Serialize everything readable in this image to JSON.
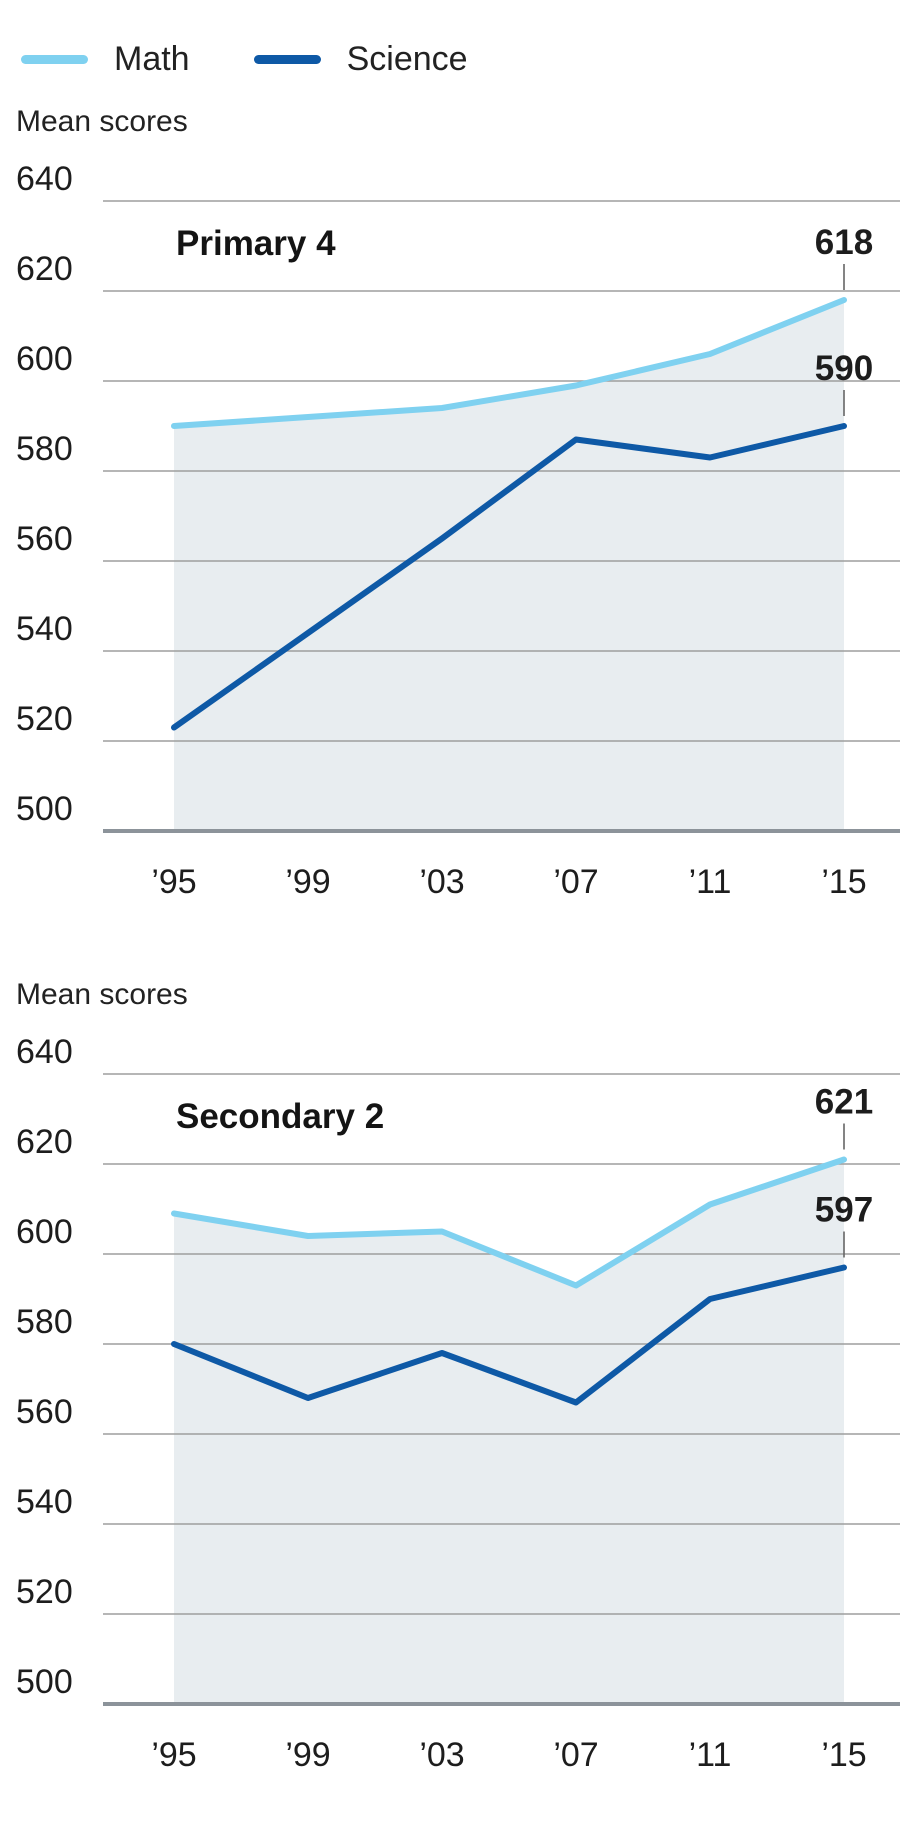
{
  "legend": {
    "items": [
      {
        "label": "Math",
        "color": "#7fd1f0"
      },
      {
        "label": "Science",
        "color": "#0e59a6"
      }
    ]
  },
  "chart_data": [
    {
      "type": "line",
      "title": "Primary 4",
      "ylabel": "Mean scores",
      "xlabel": "",
      "x": [
        "’95",
        "’99",
        "’03",
        "’07",
        "’11",
        "’15"
      ],
      "ylim": [
        500,
        640
      ],
      "y_ticks": [
        640,
        620,
        600,
        580,
        560,
        540,
        520,
        500
      ],
      "grid": true,
      "legend_position": "top",
      "area_fill": "#e8edf0",
      "series": [
        {
          "name": "Math",
          "color": "#7fd1f0",
          "values": [
            590,
            592,
            594,
            599,
            606,
            618
          ],
          "end_label": "618"
        },
        {
          "name": "Science",
          "color": "#0e59a6",
          "values": [
            523,
            544,
            565,
            587,
            583,
            590
          ],
          "end_label": "590"
        }
      ]
    },
    {
      "type": "line",
      "title": "Secondary 2",
      "ylabel": "Mean scores",
      "xlabel": "",
      "x": [
        "’95",
        "’99",
        "’03",
        "’07",
        "’11",
        "’15"
      ],
      "ylim": [
        500,
        640
      ],
      "y_ticks": [
        640,
        620,
        600,
        580,
        560,
        540,
        520,
        500
      ],
      "grid": true,
      "legend_position": "top",
      "area_fill": "#e8edf0",
      "series": [
        {
          "name": "Math",
          "color": "#7fd1f0",
          "values": [
            609,
            604,
            605,
            593,
            611,
            621
          ],
          "end_label": "621"
        },
        {
          "name": "Science",
          "color": "#0e59a6",
          "values": [
            580,
            568,
            578,
            567,
            590,
            597
          ],
          "end_label": "597"
        }
      ]
    }
  ],
  "colors": {
    "gridline": "#9e9e9e",
    "baseline": "#8c939a",
    "text": "#1d1d1d",
    "connector": "#666666"
  }
}
